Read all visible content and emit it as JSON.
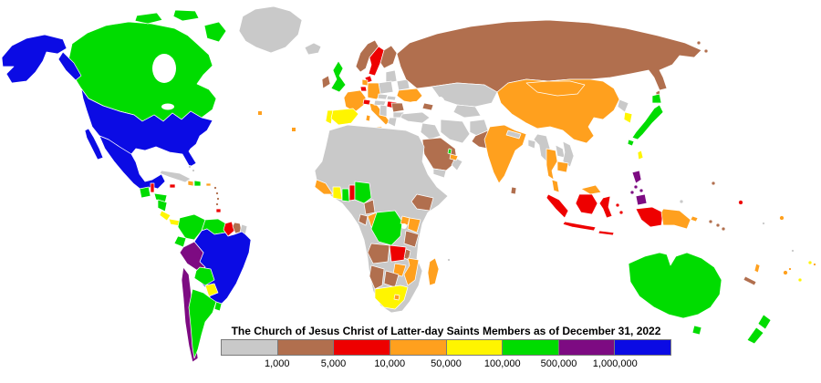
{
  "title": "The Church of Jesus Christ of Latter-day Saints Members as of December 31, 2022",
  "legend": {
    "tick_labels": [
      "1,000",
      "5,000",
      "10,000",
      "50,000",
      "100,000",
      "500,000",
      "1,000,000"
    ],
    "classes_order": [
      "lt_1k",
      "k1_5k",
      "k5_10k",
      "k10_50k",
      "k50_100k",
      "k100_500k",
      "k500_1m",
      "gt_1m"
    ]
  },
  "map": {
    "type": "choropleth",
    "classes": {
      "lt_1k": {
        "range": "< 1,000",
        "color": "#c9c9c9"
      },
      "k1_5k": {
        "range": "1,000 - 5,000",
        "color": "#b16f4e"
      },
      "k5_10k": {
        "range": "5,000 - 10,000",
        "color": "#ee0000"
      },
      "k10_50k": {
        "range": "10,000 - 50,000",
        "color": "#ffa01e"
      },
      "k50_100k": {
        "range": "50,000 - 100,000",
        "color": "#fff500"
      },
      "k100_500k": {
        "range": "100,000 - 500,000",
        "color": "#00dc00"
      },
      "k500_1m": {
        "range": "500,000 - 1,000,000",
        "color": "#7d0b82"
      },
      "gt_1m": {
        "range": "> 1,000,000",
        "color": "#0b0be4"
      }
    },
    "countries": {
      "greenland": "lt_1k",
      "canada": "k100_500k",
      "usa": "gt_1m",
      "mexico": "gt_1m",
      "guatemala": "k100_500k",
      "belize": "k5_10k",
      "honduras": "k100_500k",
      "nicaragua": "k100_500k",
      "costa_rica": "k50_100k",
      "panama": "k50_100k",
      "cuba": "lt_1k",
      "bahamas": "lt_1k",
      "jamaica": "k5_10k",
      "haiti": "k10_50k",
      "dominican_republic": "k100_500k",
      "puerto_rico": "k10_50k",
      "lesser_antilles": "k1_5k",
      "trinidad": "k5_10k",
      "colombia": "k100_500k",
      "venezuela": "k100_500k",
      "guyana": "k5_10k",
      "suriname": "k1_5k",
      "french_guiana": "lt_1k",
      "ecuador": "k100_500k",
      "peru": "k500_1m",
      "brazil": "gt_1m",
      "bolivia": "k100_500k",
      "paraguay": "k50_100k",
      "chile": "k500_1m",
      "argentina": "k100_500k",
      "uruguay": "k100_500k",
      "iceland": "lt_1k",
      "ireland": "k1_5k",
      "united_kingdom": "k100_500k",
      "norway": "k1_5k",
      "sweden": "k5_10k",
      "finland": "k1_5k",
      "denmark": "k5_10k",
      "baltic_states": "lt_1k",
      "belarus": "lt_1k",
      "poland": "lt_1k",
      "germany": "k10_50k",
      "netherlands": "k10_50k",
      "belgium": "k5_10k",
      "france": "k10_50k",
      "spain": "k50_100k",
      "portugal": "k50_100k",
      "switzerland": "k5_10k",
      "italy": "k10_50k",
      "czechia": "lt_1k",
      "austria": "lt_1k",
      "slovakia": "lt_1k",
      "hungary": "k5_10k",
      "ukraine": "k10_50k",
      "romania": "k1_5k",
      "bulgaria": "lt_1k",
      "balkans": "lt_1k",
      "greece": "lt_1k",
      "russia": "k1_5k",
      "kazakhstan": "lt_1k",
      "central_asia": "lt_1k",
      "caucasus": "k1_5k",
      "turkey": "lt_1k",
      "levant_iraq": "lt_1k",
      "saudi_arabia": "k1_5k",
      "yemen": "lt_1k",
      "oman": "lt_1k",
      "uae": "k10_50k",
      "qatar": "k100_500k",
      "iran": "lt_1k",
      "afghanistan": "lt_1k",
      "pakistan": "k1_5k",
      "india": "k10_50k",
      "nepal": "lt_1k",
      "bangladesh": "lt_1k",
      "sri_lanka": "k1_5k",
      "myanmar": "lt_1k",
      "china": "k10_50k",
      "mongolia": "k10_50k",
      "north_korea": "lt_1k",
      "south_korea": "k50_100k",
      "japan": "k100_500k",
      "taiwan": "k50_100k",
      "thailand": "k10_50k",
      "laos": "lt_1k",
      "vietnam": "lt_1k",
      "cambodia": "k10_50k",
      "malaysia": "k10_50k",
      "indonesia": "k5_10k",
      "philippines": "k500_1m",
      "papua_new_guinea": "k10_50k",
      "north_africa": "lt_1k",
      "guinea_region": "k10_50k",
      "cote_divoire": "k50_100k",
      "ghana": "k100_500k",
      "togo_benin": "k5_10k",
      "nigeria": "k100_500k",
      "cameroon": "k1_5k",
      "gabon": "k1_5k",
      "congo": "k10_50k",
      "dr_congo": "k100_500k",
      "uganda": "k10_50k",
      "kenya": "k10_50k",
      "tanzania": "k1_5k",
      "ethiopia": "k1_5k",
      "angola": "k1_5k",
      "zambia": "k5_10k",
      "malawi": "k1_5k",
      "mozambique": "k10_50k",
      "zimbabwe": "k10_50k",
      "botswana": "k1_5k",
      "namibia": "k1_5k",
      "south_africa": "k50_100k",
      "lesotho": "k10_50k",
      "madagascar": "k10_50k",
      "australia": "k100_500k",
      "new_zealand": "k100_500k",
      "solomon_islands": "k1_5k",
      "vanuatu": "k10_50k",
      "new_caledonia": "k1_5k",
      "fiji": "k10_50k",
      "samoa": "k50_100k",
      "american_samoa": "k10_50k",
      "tonga": "k50_100k",
      "micronesia": "k1_5k",
      "guam": "lt_1k",
      "marshall_islands": "k5_10k",
      "kiribati": "k10_50k",
      "pacific_other": "lt_1k",
      "indian_ocean_islands": "lt_1k"
    },
    "inset_marker_classes": {
      "atlantic_islands_line": "k10_50k",
      "canary_madeira_boxes": "k50_100k"
    }
  }
}
